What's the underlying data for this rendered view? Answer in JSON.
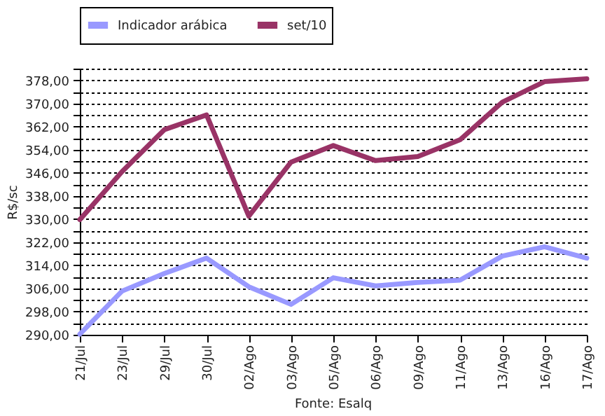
{
  "chart_data": {
    "type": "line",
    "ylabel": "R$/sc",
    "annotations": [
      "Fonte: Esalq"
    ],
    "categories": [
      "21/Jul",
      "23/Jul",
      "29/Jul",
      "30/Jul",
      "02/Ago",
      "03/Ago",
      "05/Ago",
      "06/Ago",
      "09/Ago",
      "11/Ago",
      "13/Ago",
      "16/Ago",
      "17/Ago"
    ],
    "series": [
      {
        "name": "Indicador arábica",
        "color": "#9999ff",
        "values": [
          290.2,
          305.1,
          311.2,
          316.5,
          306.6,
          300.5,
          309.7,
          306.9,
          308.1,
          308.9,
          317.2,
          320.4,
          316.5
        ]
      },
      {
        "name": "set/10",
        "color": "#993366",
        "values": [
          329.8,
          346.4,
          360.9,
          366,
          331,
          349.7,
          355.4,
          350.2,
          351.6,
          357.4,
          370.4,
          377.5,
          378.5
        ]
      }
    ],
    "ylim": [
      290,
      382
    ],
    "yticks": [
      {
        "value": 290,
        "label": "290,00"
      },
      {
        "value": 294,
        "label": null
      },
      {
        "value": 298,
        "label": "298,00"
      },
      {
        "value": 302,
        "label": null
      },
      {
        "value": 306,
        "label": "306,00"
      },
      {
        "value": 310,
        "label": null
      },
      {
        "value": 314,
        "label": "314,00"
      },
      {
        "value": 318,
        "label": null
      },
      {
        "value": 322,
        "label": "322,00"
      },
      {
        "value": 326,
        "label": null
      },
      {
        "value": 330,
        "label": "330,00"
      },
      {
        "value": 334,
        "label": null
      },
      {
        "value": 338,
        "label": "338,00"
      },
      {
        "value": 342,
        "label": null
      },
      {
        "value": 346,
        "label": "346,00"
      },
      {
        "value": 350,
        "label": null
      },
      {
        "value": 354,
        "label": "354,00"
      },
      {
        "value": 358,
        "label": null
      },
      {
        "value": 362,
        "label": "362,00"
      },
      {
        "value": 366,
        "label": null
      },
      {
        "value": 370,
        "label": "370,00"
      },
      {
        "value": 374,
        "label": null
      },
      {
        "value": 378,
        "label": "378,00"
      },
      {
        "value": 382,
        "label": null
      }
    ],
    "grid": "y",
    "legend": "top"
  }
}
